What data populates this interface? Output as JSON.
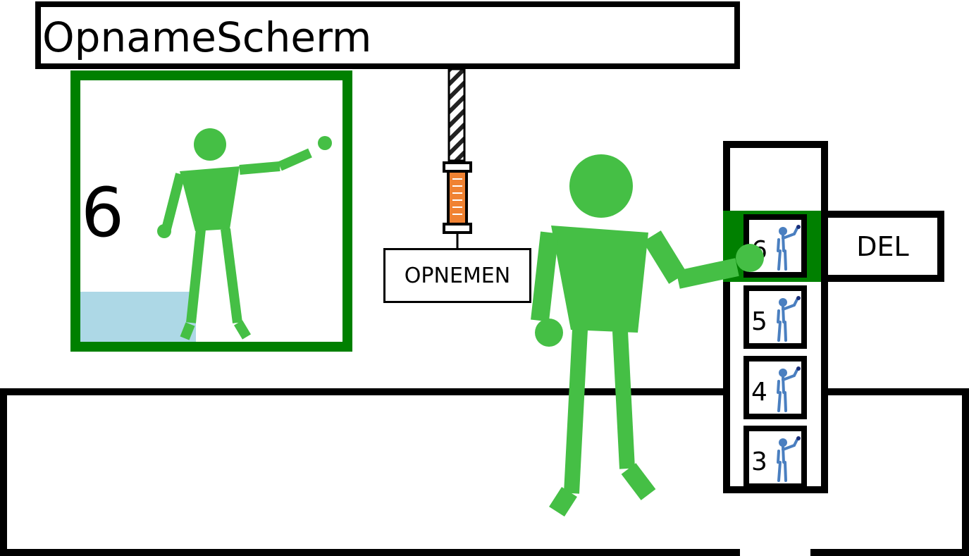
{
  "title": "OpnameScherm",
  "preview": {
    "number": "6",
    "progress": 0.44
  },
  "record_button": {
    "label": "OPNEMEN"
  },
  "delete_button": {
    "label": "DEL"
  },
  "recordings": [
    {
      "number": "6",
      "selected": true
    },
    {
      "number": "5",
      "selected": false
    },
    {
      "number": "4",
      "selected": false
    },
    {
      "number": "3",
      "selected": false
    }
  ],
  "colors": {
    "frame_green": "#008000",
    "figure_green": "#45bf45",
    "progress_blue": "#add8e6",
    "syringe_orange": "#f08232",
    "thumb_figure_blue": "#4a7fc0"
  }
}
